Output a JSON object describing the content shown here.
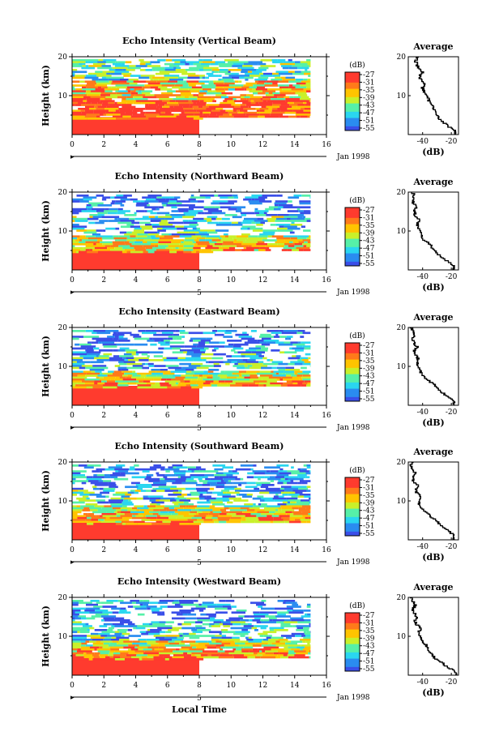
{
  "figure": {
    "date_label": "Jan 1998",
    "xlabel": "Local Time",
    "ylabel": "Height (km)",
    "colorbar_title": "(dB)",
    "colorbar_labels": [
      "-27",
      "-31",
      "-35",
      "-39",
      "-43",
      "-47",
      "-51",
      "-55"
    ],
    "colorbar_colors": [
      "#ff3b2e",
      "#ff7a1a",
      "#ffc400",
      "#c9f02a",
      "#56f0a8",
      "#2ad6f0",
      "#2a8cf0",
      "#3a4fe8"
    ],
    "avg_title": "Average",
    "avg_xlabel": "(dB)",
    "sub_axis_label": "5",
    "sub_axis_marker": "▸"
  },
  "chart_data": [
    {
      "type": "heatmap",
      "title": "Echo Intensity (Vertical Beam)",
      "xlabel": "",
      "ylabel": "Height (km)",
      "xlim": [
        0,
        16
      ],
      "ylim": [
        0,
        20
      ],
      "xticks": [
        "0",
        "2",
        "4",
        "6",
        "8",
        "10",
        "12",
        "14",
        "16"
      ],
      "yticks": [
        "10",
        "20"
      ],
      "data_end_hour": 15,
      "gap_start_hour": 8,
      "gap_below_km": 4.5,
      "colorbar_range_db": [
        -55,
        -27
      ],
      "average_profile": {
        "title": "Average",
        "xlabel": "(dB)",
        "xticks": [
          "-40",
          "-20"
        ],
        "xlim": [
          -50,
          -15
        ],
        "ylim": [
          0,
          20
        ],
        "yticks": [
          "10",
          "20"
        ],
        "heights_km": [
          1,
          2,
          3,
          4,
          5,
          6,
          7,
          8,
          9,
          10,
          11,
          12,
          13,
          14,
          15,
          16,
          17,
          18,
          19,
          20
        ],
        "db": [
          -17,
          -22,
          -25,
          -28,
          -30,
          -31,
          -33,
          -34,
          -36,
          -37,
          -39,
          -40,
          -39,
          -41,
          -42,
          -40,
          -43,
          -44,
          -45,
          -43
        ]
      }
    },
    {
      "type": "heatmap",
      "title": "Echo Intensity (Northward Beam)",
      "xlabel": "",
      "ylabel": "Height (km)",
      "xlim": [
        0,
        16
      ],
      "ylim": [
        0,
        20
      ],
      "xticks": [
        "0",
        "2",
        "4",
        "6",
        "8",
        "10",
        "12",
        "14",
        "16"
      ],
      "yticks": [
        "10",
        "20"
      ],
      "data_end_hour": 15,
      "gap_start_hour": 8,
      "gap_below_km": 5,
      "colorbar_range_db": [
        -55,
        -27
      ],
      "average_profile": {
        "title": "Average",
        "xlabel": "(dB)",
        "xticks": [
          "-40",
          "-20"
        ],
        "xlim": [
          -50,
          -15
        ],
        "ylim": [
          0,
          20
        ],
        "yticks": [
          "10",
          "20"
        ],
        "heights_km": [
          1,
          2,
          3,
          4,
          5,
          6,
          7,
          8,
          9,
          10,
          11,
          12,
          13,
          14,
          15,
          16,
          17,
          18,
          19,
          20
        ],
        "db": [
          -18,
          -22,
          -26,
          -29,
          -31,
          -34,
          -36,
          -40,
          -41,
          -42,
          -43,
          -44,
          -42,
          -45,
          -46,
          -44,
          -46,
          -47,
          -46,
          -47
        ]
      }
    },
    {
      "type": "heatmap",
      "title": "Echo Intensity (Eastward Beam)",
      "xlabel": "",
      "ylabel": "Height (km)",
      "xlim": [
        0,
        16
      ],
      "ylim": [
        0,
        20
      ],
      "xticks": [
        "0",
        "2",
        "4",
        "6",
        "8",
        "10",
        "12",
        "14",
        "16"
      ],
      "yticks": [
        "10",
        "20"
      ],
      "data_end_hour": 15,
      "gap_start_hour": 8,
      "gap_below_km": 5,
      "colorbar_range_db": [
        -55,
        -27
      ],
      "average_profile": {
        "title": "Average",
        "xlabel": "(dB)",
        "xticks": [
          "-40",
          "-20"
        ],
        "xlim": [
          -50,
          -15
        ],
        "ylim": [
          0,
          20
        ],
        "yticks": [
          "10",
          "20"
        ],
        "heights_km": [
          1,
          2,
          3,
          4,
          5,
          6,
          7,
          8,
          9,
          10,
          11,
          12,
          13,
          14,
          15,
          16,
          17,
          18,
          19,
          20
        ],
        "db": [
          -18,
          -22,
          -25,
          -29,
          -31,
          -35,
          -38,
          -41,
          -42,
          -43,
          -44,
          -43,
          -45,
          -46,
          -44,
          -46,
          -47,
          -45,
          -47,
          -48
        ]
      }
    },
    {
      "type": "heatmap",
      "title": "Echo Intensity (Southward Beam)",
      "xlabel": "",
      "ylabel": "Height (km)",
      "xlim": [
        0,
        16
      ],
      "ylim": [
        0,
        20
      ],
      "xticks": [
        "0",
        "2",
        "4",
        "6",
        "8",
        "10",
        "12",
        "14",
        "16"
      ],
      "yticks": [
        "10",
        "20"
      ],
      "data_end_hour": 15,
      "gap_start_hour": 8,
      "gap_below_km": 4.5,
      "colorbar_range_db": [
        -55,
        -27
      ],
      "average_profile": {
        "title": "Average",
        "xlabel": "(dB)",
        "xticks": [
          "-40",
          "-20"
        ],
        "xlim": [
          -50,
          -15
        ],
        "ylim": [
          0,
          20
        ],
        "yticks": [
          "10",
          "20"
        ],
        "heights_km": [
          1,
          2,
          3,
          4,
          5,
          6,
          7,
          8,
          9,
          10,
          11,
          12,
          13,
          14,
          15,
          16,
          17,
          18,
          19,
          20
        ],
        "db": [
          -18,
          -21,
          -25,
          -28,
          -31,
          -34,
          -37,
          -40,
          -42,
          -43,
          -41,
          -44,
          -45,
          -43,
          -46,
          -47,
          -45,
          -47,
          -48,
          -47
        ]
      }
    },
    {
      "type": "heatmap",
      "title": "Echo Intensity (Westward Beam)",
      "xlabel": "Local Time",
      "ylabel": "Height (km)",
      "xlim": [
        0,
        16
      ],
      "ylim": [
        0,
        20
      ],
      "xticks": [
        "0",
        "2",
        "4",
        "6",
        "8",
        "10",
        "12",
        "14",
        "16"
      ],
      "yticks": [
        "10",
        "20"
      ],
      "data_end_hour": 15,
      "gap_start_hour": 8,
      "gap_below_km": 4.5,
      "colorbar_range_db": [
        -55,
        -27
      ],
      "average_profile": {
        "title": "Average",
        "xlabel": "(dB)",
        "xticks": [
          "-40",
          "-20"
        ],
        "xlim": [
          -50,
          -15
        ],
        "ylim": [
          0,
          20
        ],
        "yticks": [
          "10",
          "20"
        ],
        "heights_km": [
          1,
          2,
          3,
          4,
          5,
          6,
          7,
          8,
          9,
          10,
          11,
          12,
          13,
          14,
          15,
          16,
          17,
          18,
          19,
          20
        ],
        "db": [
          -17,
          -22,
          -26,
          -30,
          -33,
          -35,
          -36,
          -38,
          -41,
          -42,
          -43,
          -41,
          -44,
          -45,
          -44,
          -46,
          -47,
          -45,
          -47,
          -48
        ]
      }
    }
  ]
}
